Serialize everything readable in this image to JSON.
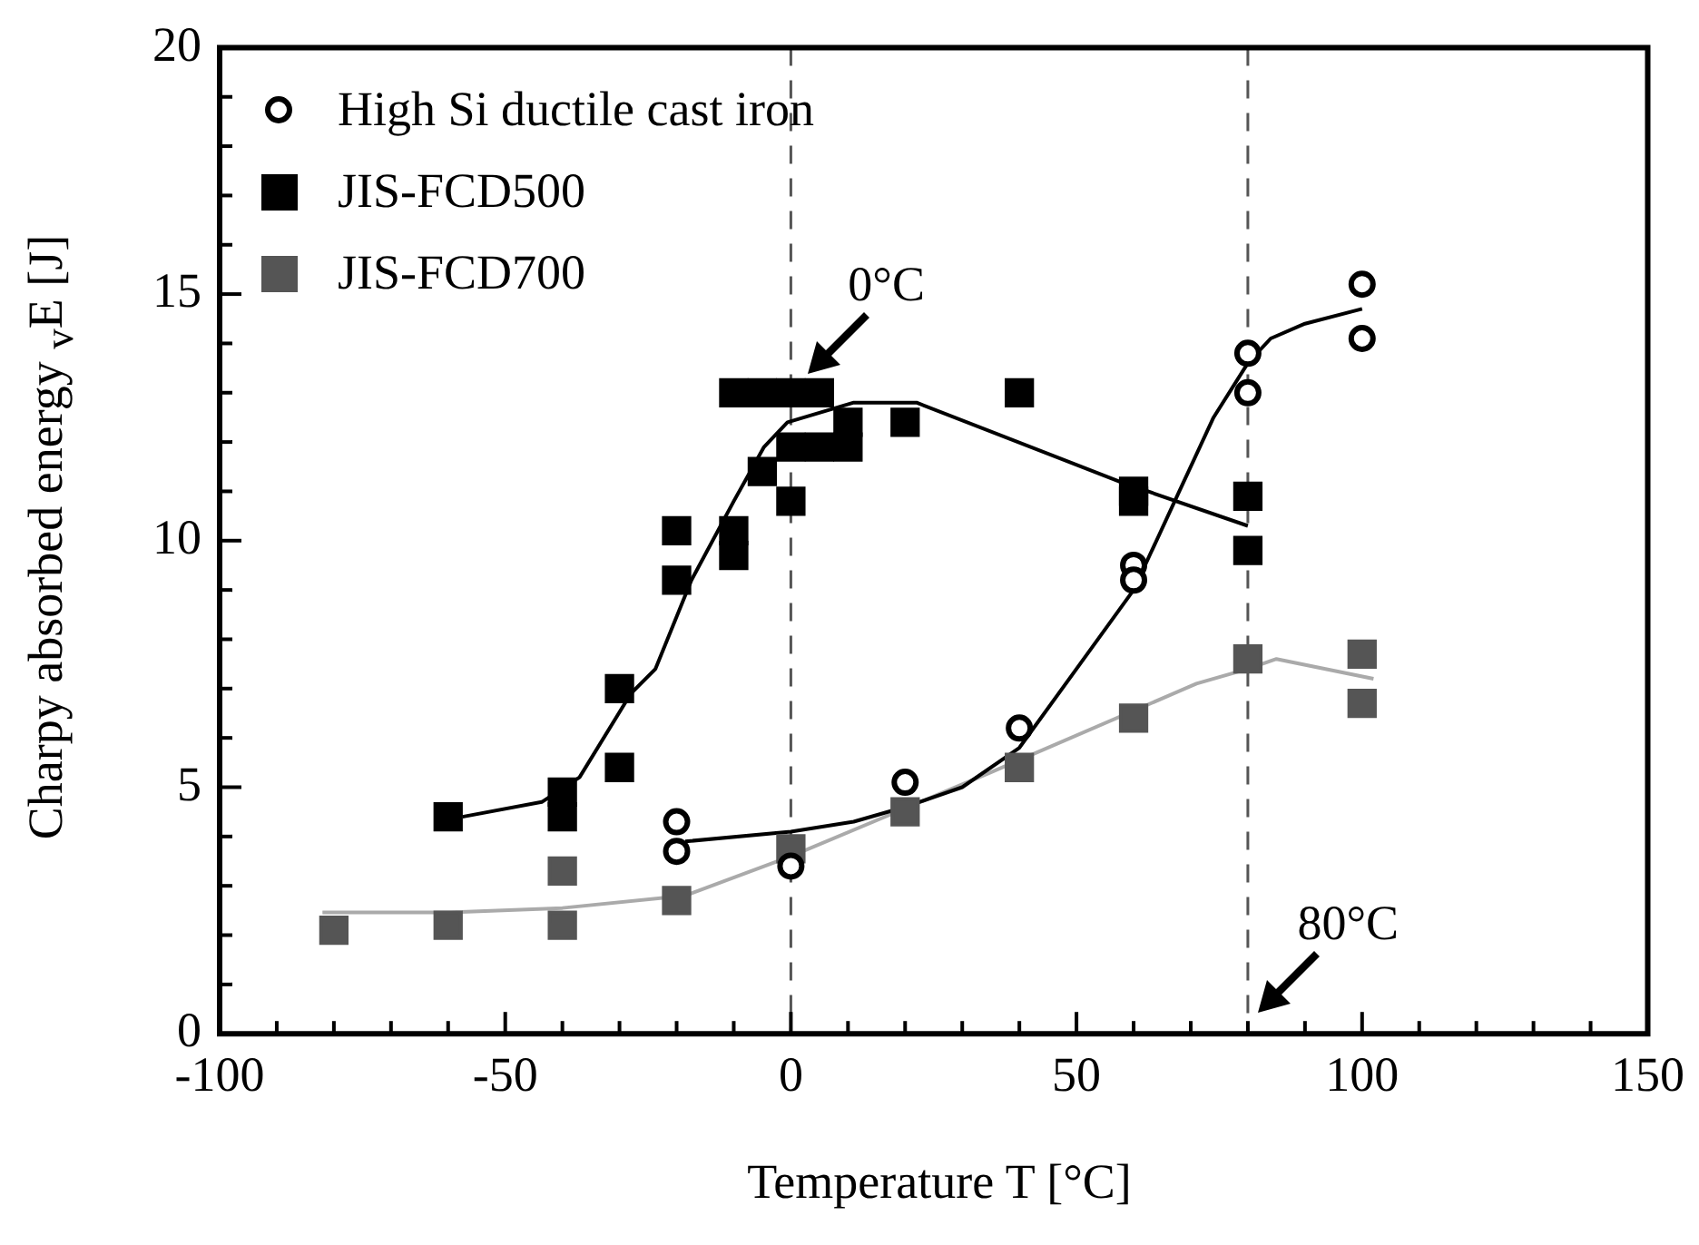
{
  "chart_data": {
    "type": "scatter",
    "xlabel": "Temperature T [°C]",
    "ylabel": "Charpy absorbed energy $_{v}$E [J]",
    "xlim": [
      -100,
      150
    ],
    "xticks": [
      -100,
      {
        "value": -90,
        "label": null
      },
      {
        "value": -80,
        "label": null
      },
      {
        "value": -70,
        "label": null
      },
      {
        "value": -60,
        "label": null
      },
      -50,
      {
        "value": -40,
        "label": null
      },
      {
        "value": -30,
        "label": null
      },
      {
        "value": -20,
        "label": null
      },
      {
        "value": -10,
        "label": null
      },
      0,
      {
        "value": 10,
        "label": null
      },
      {
        "value": 20,
        "label": null
      },
      {
        "value": 30,
        "label": null
      },
      {
        "value": 40,
        "label": null
      },
      50,
      {
        "value": 60,
        "label": null
      },
      {
        "value": 70,
        "label": null
      },
      {
        "value": 80,
        "label": null
      },
      {
        "value": 90,
        "label": null
      },
      100,
      {
        "value": 110,
        "label": null
      },
      {
        "value": 120,
        "label": null
      },
      {
        "value": 130,
        "label": null
      },
      {
        "value": 140,
        "label": null
      },
      150
    ],
    "ylim": [
      0,
      20
    ],
    "yticks": [
      0,
      {
        "value": 1,
        "label": null
      },
      {
        "value": 2,
        "label": null
      },
      {
        "value": 3,
        "label": null
      },
      {
        "value": 4,
        "label": null
      },
      5,
      {
        "value": 6,
        "label": null
      },
      {
        "value": 7,
        "label": null
      },
      {
        "value": 8,
        "label": null
      },
      {
        "value": 9,
        "label": null
      },
      10,
      {
        "value": 11,
        "label": null
      },
      {
        "value": 12,
        "label": null
      },
      {
        "value": 13,
        "label": null
      },
      {
        "value": 14,
        "label": null
      },
      15,
      {
        "value": 16,
        "label": null
      },
      {
        "value": 17,
        "label": null
      },
      {
        "value": 18,
        "label": null
      },
      {
        "value": 19,
        "label": null
      },
      20
    ],
    "grid": false,
    "legend": "top left",
    "series": [
      {
        "name": "High Si ductile cast iron",
        "marker": "circle",
        "color": "#000000",
        "x": [
          -20,
          -20,
          0,
          20,
          40,
          60,
          60,
          80,
          80,
          100,
          100
        ],
        "values": [
          4.3,
          3.7,
          3.4,
          5.1,
          6.2,
          9.5,
          9.2,
          13.8,
          13.0,
          15.2,
          14.1
        ]
      },
      {
        "name": "JIS-FCD500",
        "marker": "square",
        "color": "#000000",
        "x": [
          -60,
          -40,
          -40,
          -30,
          -30,
          -20,
          -20,
          -10,
          -10,
          -5,
          -10,
          -5,
          0,
          5,
          0,
          0,
          5,
          10,
          10,
          20,
          40,
          60,
          60,
          80,
          80
        ],
        "values": [
          4.4,
          4.9,
          4.4,
          7.0,
          5.4,
          10.2,
          9.2,
          10.2,
          9.7,
          11.4,
          13.0,
          13.0,
          13.0,
          13.0,
          10.8,
          11.9,
          11.9,
          11.9,
          12.4,
          12.4,
          13.0,
          11.0,
          10.8,
          10.9,
          9.8
        ]
      },
      {
        "name": "JIS-FCD700",
        "marker": "square",
        "color": "#555555",
        "x": [
          -80,
          -60,
          -40,
          -40,
          -20,
          0,
          20,
          40,
          60,
          80,
          100,
          100
        ],
        "values": [
          2.1,
          2.2,
          3.3,
          2.2,
          2.7,
          3.75,
          4.5,
          5.4,
          6.4,
          7.6,
          7.7,
          6.7
        ]
      },
      {
        "type": "line",
        "marker": "none",
        "color": "#000000",
        "x": [
          -18.5,
          0,
          11,
          20,
          30,
          40,
          50,
          60,
          68,
          74,
          80,
          84,
          90,
          100
        ],
        "values": [
          3.9,
          4.1,
          4.3,
          4.6,
          5.0,
          5.8,
          7.4,
          9.0,
          11.0,
          12.5,
          13.6,
          14.1,
          14.4,
          14.7
        ]
      },
      {
        "type": "line",
        "marker": "none",
        "color": "#000000",
        "x": [
          -57.5,
          -43.6,
          -37,
          -28,
          -23.7,
          -17.4,
          -10,
          -4.7,
          -0.6,
          11,
          22,
          57.5,
          80
        ],
        "values": [
          4.4,
          4.7,
          5.2,
          6.9,
          7.4,
          9.2,
          10.8,
          11.9,
          12.4,
          12.8,
          12.8,
          11.2,
          10.3
        ]
      },
      {
        "type": "line",
        "marker": "none",
        "color": "#aaaaaa",
        "x": [
          -82,
          -59.5,
          -40,
          -18.5,
          0,
          20.6,
          35,
          71,
          80,
          85,
          102
        ],
        "values": [
          2.46,
          2.46,
          2.55,
          2.8,
          3.6,
          4.6,
          5.3,
          7.1,
          7.4,
          7.6,
          7.2
        ]
      }
    ],
    "ref_lines": [
      {
        "axis": "x",
        "value": 0,
        "color": "#555555",
        "line_style": "dashed"
      },
      {
        "axis": "x",
        "value": 80,
        "color": "#555555",
        "line_style": "dashed"
      }
    ],
    "annotations": [
      {
        "text": "0°C",
        "x": 3,
        "y": 13.4
      },
      "80°C"
    ]
  }
}
